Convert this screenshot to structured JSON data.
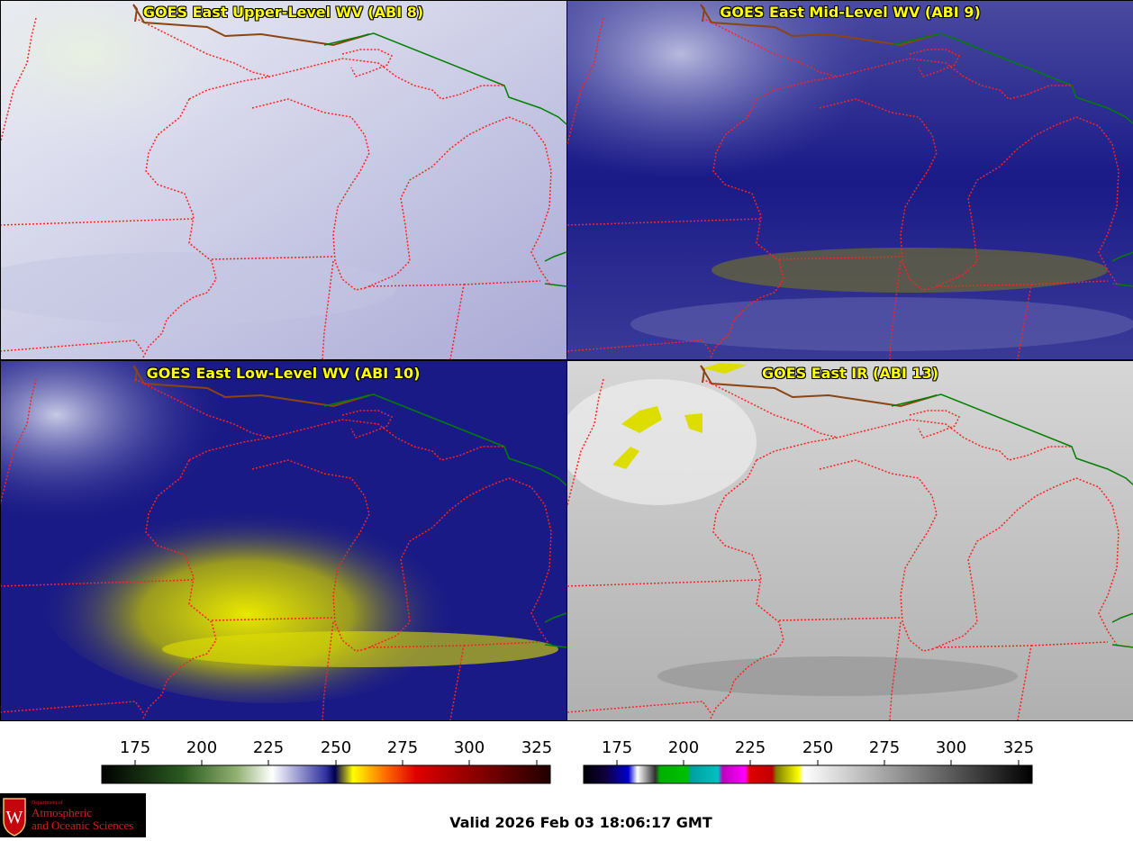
{
  "panels": [
    {
      "title": "GOES East Upper-Level WV (ABI 8)"
    },
    {
      "title": "GOES East Mid-Level WV (ABI 9)"
    },
    {
      "title": "GOES East Low-Level WV (ABI 10)"
    },
    {
      "title": "GOES East IR (ABI 13)"
    }
  ],
  "colorbar_wv": {
    "ticks": [
      "175",
      "200",
      "225",
      "250",
      "275",
      "300",
      "325"
    ]
  },
  "colorbar_ir": {
    "ticks": [
      "175",
      "200",
      "225",
      "250",
      "275",
      "300",
      "325"
    ]
  },
  "logo": {
    "line1": "Department of",
    "line2": "Atmospheric",
    "line3": "and Oceanic Sciences",
    "icon": "uw-crest-icon"
  },
  "valid_time": "Valid 2026 Feb 03 18:06:17 GMT",
  "colors": {
    "title_text": "#ffff00",
    "state_lines": "#ff2020",
    "border_line": "#008000",
    "coast_line": "#8b4513"
  }
}
